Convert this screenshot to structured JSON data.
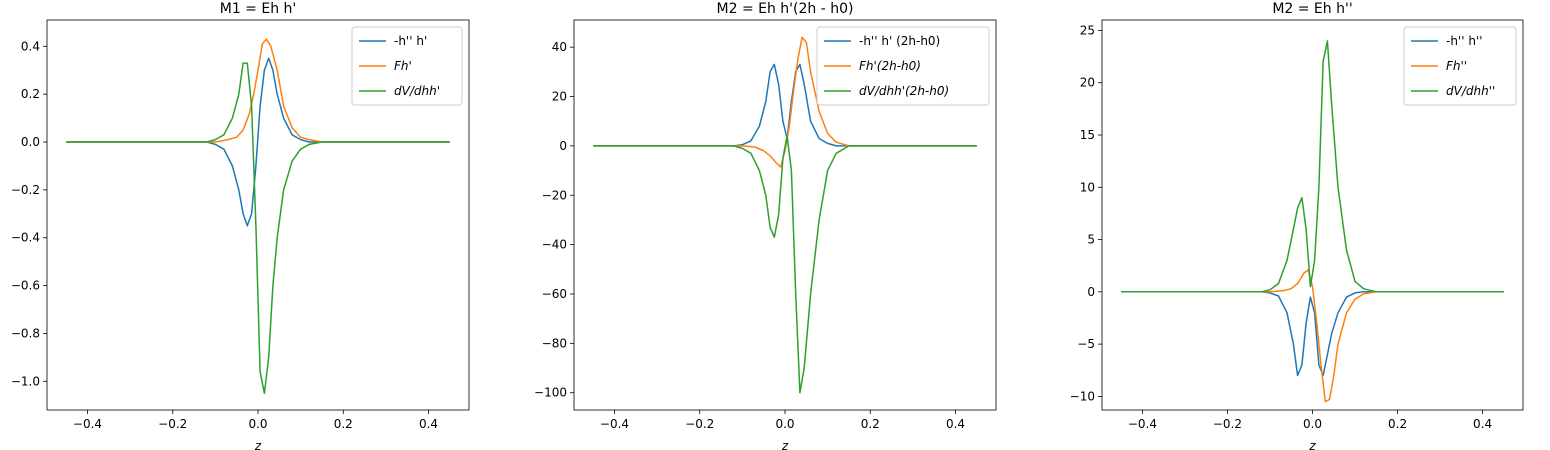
{
  "chart_data": [
    {
      "type": "line",
      "title": "M1 = Eh h'",
      "xlabel": "z",
      "ylabel": "",
      "xlim": [
        -0.495,
        0.495
      ],
      "ylim": [
        -1.12,
        0.51
      ],
      "xticks": [
        -0.4,
        -0.2,
        0.0,
        0.2,
        0.4
      ],
      "xtick_labels": [
        "−0.4",
        "−0.2",
        "0.0",
        "0.2",
        "0.4"
      ],
      "yticks": [
        -1.0,
        -0.8,
        -0.6,
        -0.4,
        -0.2,
        0.0,
        0.2,
        0.4
      ],
      "ytick_labels": [
        "−1.0",
        "−0.8",
        "−0.6",
        "−0.4",
        "−0.2",
        "0.0",
        "0.2",
        "0.4"
      ],
      "legend_position": "top-right",
      "series": [
        {
          "name": "-h'' h'",
          "color": "#1f77b4",
          "x": [
            -0.45,
            -0.12,
            -0.1,
            -0.08,
            -0.06,
            -0.045,
            -0.035,
            -0.025,
            -0.015,
            -0.005,
            0.005,
            0.015,
            0.025,
            0.035,
            0.045,
            0.06,
            0.08,
            0.1,
            0.12,
            0.45
          ],
          "y": [
            0,
            0,
            -0.01,
            -0.03,
            -0.1,
            -0.2,
            -0.3,
            -0.35,
            -0.3,
            -0.1,
            0.15,
            0.3,
            0.35,
            0.3,
            0.2,
            0.1,
            0.03,
            0.01,
            0,
            0
          ]
        },
        {
          "name": "Fh'",
          "color": "#ff7f0e",
          "math": true,
          "x": [
            -0.45,
            -0.1,
            -0.07,
            -0.05,
            -0.035,
            -0.02,
            -0.01,
            0,
            0.01,
            0.02,
            0.03,
            0.045,
            0.06,
            0.08,
            0.1,
            0.12,
            0.15,
            0.45
          ],
          "y": [
            0,
            0,
            0.01,
            0.02,
            0.05,
            0.12,
            0.2,
            0.3,
            0.41,
            0.43,
            0.4,
            0.3,
            0.15,
            0.06,
            0.02,
            0.01,
            0,
            0
          ]
        },
        {
          "name": "dV/dhh'",
          "color": "#2ca02c",
          "math": true,
          "x": [
            -0.45,
            -0.12,
            -0.1,
            -0.08,
            -0.06,
            -0.045,
            -0.035,
            -0.025,
            -0.015,
            -0.005,
            0.005,
            0.015,
            0.025,
            0.035,
            0.045,
            0.06,
            0.08,
            0.1,
            0.12,
            0.15,
            0.45
          ],
          "y": [
            0,
            0,
            0.01,
            0.03,
            0.1,
            0.2,
            0.33,
            0.33,
            0.15,
            -0.35,
            -0.96,
            -1.05,
            -0.9,
            -0.6,
            -0.4,
            -0.2,
            -0.08,
            -0.03,
            -0.01,
            0,
            0
          ]
        }
      ]
    },
    {
      "type": "line",
      "title": "M2 = Eh h'(2h - h0)",
      "xlabel": "z",
      "ylabel": "",
      "xlim": [
        -0.495,
        0.495
      ],
      "ylim": [
        -107,
        51
      ],
      "xticks": [
        -0.4,
        -0.2,
        0.0,
        0.2,
        0.4
      ],
      "xtick_labels": [
        "−0.4",
        "−0.2",
        "0.0",
        "0.2",
        "0.4"
      ],
      "yticks": [
        -100,
        -80,
        -60,
        -40,
        -20,
        0,
        20,
        40
      ],
      "ytick_labels": [
        "−100",
        "−80",
        "−60",
        "−40",
        "−20",
        "0",
        "20",
        "40"
      ],
      "legend_position": "top-right",
      "series": [
        {
          "name": "-h'' h' (2h-h0)",
          "color": "#1f77b4",
          "x": [
            -0.45,
            -0.12,
            -0.1,
            -0.08,
            -0.06,
            -0.045,
            -0.035,
            -0.025,
            -0.015,
            -0.005,
            0.005,
            0.015,
            0.025,
            0.035,
            0.045,
            0.06,
            0.08,
            0.1,
            0.12,
            0.45
          ],
          "y": [
            0,
            0,
            0.5,
            2,
            8,
            18,
            30,
            33,
            25,
            10,
            3,
            18,
            30,
            33,
            25,
            10,
            3,
            1,
            0,
            0
          ]
        },
        {
          "name": "Fh'(2h-h0)",
          "color": "#ff7f0e",
          "math": true,
          "x": [
            -0.45,
            -0.1,
            -0.07,
            -0.05,
            -0.035,
            -0.02,
            -0.01,
            0,
            0.01,
            0.02,
            0.03,
            0.04,
            0.05,
            0.06,
            0.08,
            0.1,
            0.12,
            0.15,
            0.45
          ],
          "y": [
            0,
            0,
            -0.5,
            -2,
            -4,
            -7,
            -8.5,
            -2,
            8,
            22,
            35,
            44,
            42,
            30,
            14,
            5,
            1.5,
            0,
            0
          ]
        },
        {
          "name": "dV/dhh'(2h-h0)",
          "color": "#2ca02c",
          "math": true,
          "x": [
            -0.45,
            -0.12,
            -0.1,
            -0.08,
            -0.06,
            -0.045,
            -0.035,
            -0.025,
            -0.015,
            -0.005,
            0.005,
            0.015,
            0.025,
            0.035,
            0.045,
            0.06,
            0.08,
            0.1,
            0.12,
            0.15,
            0.45
          ],
          "y": [
            0,
            0,
            -1,
            -3,
            -10,
            -20,
            -33,
            -37,
            -28,
            -5,
            4,
            -10,
            -60,
            -100,
            -90,
            -60,
            -30,
            -10,
            -3,
            0,
            0
          ]
        }
      ]
    },
    {
      "type": "line",
      "title": "M2 = Eh h''",
      "xlabel": "z",
      "ylabel": "",
      "xlim": [
        -0.495,
        0.495
      ],
      "ylim": [
        -11.3,
        26.0
      ],
      "xticks": [
        -0.4,
        -0.2,
        0.0,
        0.2,
        0.4
      ],
      "xtick_labels": [
        "−0.4",
        "−0.2",
        "0.0",
        "0.2",
        "0.4"
      ],
      "yticks": [
        -10,
        -5,
        0,
        5,
        10,
        15,
        20,
        25
      ],
      "ytick_labels": [
        "−10",
        "−5",
        "0",
        "5",
        "10",
        "15",
        "20",
        "25"
      ],
      "legend_position": "top-right",
      "series": [
        {
          "name": "-h'' h''",
          "color": "#1f77b4",
          "x": [
            -0.45,
            -0.12,
            -0.1,
            -0.08,
            -0.06,
            -0.045,
            -0.035,
            -0.025,
            -0.015,
            -0.005,
            0.005,
            0.015,
            0.025,
            0.035,
            0.045,
            0.06,
            0.08,
            0.1,
            0.12,
            0.45
          ],
          "y": [
            0,
            0,
            -0.1,
            -0.4,
            -2,
            -5,
            -8,
            -7,
            -3,
            -0.5,
            -2,
            -7,
            -8,
            -6,
            -4,
            -2,
            -0.5,
            -0.1,
            0,
            0
          ]
        },
        {
          "name": "Fh''",
          "color": "#ff7f0e",
          "math": true,
          "x": [
            -0.45,
            -0.1,
            -0.07,
            -0.05,
            -0.035,
            -0.02,
            -0.01,
            0,
            0.01,
            0.02,
            0.03,
            0.04,
            0.05,
            0.06,
            0.08,
            0.1,
            0.12,
            0.15,
            0.45
          ],
          "y": [
            0,
            0,
            0.1,
            0.3,
            0.8,
            1.8,
            2.1,
            0.5,
            -3,
            -7,
            -10.5,
            -10.3,
            -8,
            -5,
            -2,
            -0.7,
            -0.2,
            0,
            0
          ]
        },
        {
          "name": "dV/dhh''",
          "color": "#2ca02c",
          "math": true,
          "x": [
            -0.45,
            -0.12,
            -0.1,
            -0.08,
            -0.06,
            -0.045,
            -0.035,
            -0.025,
            -0.015,
            -0.005,
            0.005,
            0.015,
            0.025,
            0.035,
            0.045,
            0.06,
            0.08,
            0.1,
            0.12,
            0.15,
            0.45
          ],
          "y": [
            0,
            0,
            0.2,
            0.8,
            3,
            6,
            8,
            9,
            6,
            0.5,
            3,
            10,
            22,
            24,
            18,
            10,
            4,
            1,
            0.3,
            0,
            0
          ]
        }
      ]
    }
  ]
}
